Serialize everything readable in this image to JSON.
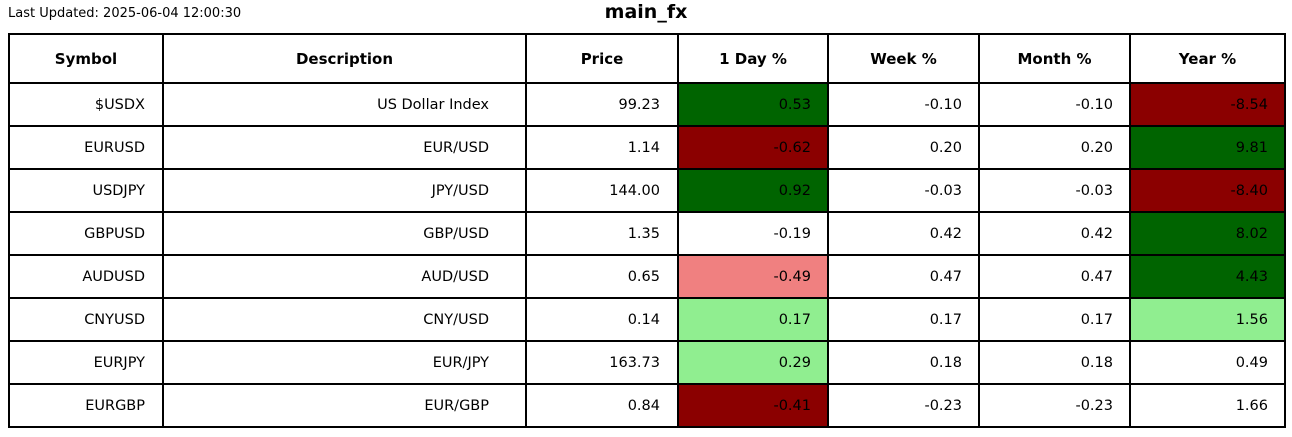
{
  "last_updated": "Last Updated: 2025-06-04 12:00:30",
  "title": "main_fx",
  "colors": {
    "strong_up": "#006400",
    "mild_up": "#90ee90",
    "strong_down": "#8b0000",
    "mild_down": "#f08080",
    "neutral": "#ffffff",
    "border": "#000000",
    "text": "#000000"
  },
  "chart_data": {
    "type": "table",
    "title": "main_fx",
    "columns": [
      "Symbol",
      "Description",
      "Price",
      "1 Day %",
      "Week %",
      "Month %",
      "Year %"
    ],
    "rows": [
      {
        "symbol": "$USDX",
        "description": "US Dollar Index",
        "price": "99.23",
        "pcts": [
          {
            "v": "0.53",
            "bg": "strong_up"
          },
          {
            "v": "-0.10",
            "bg": "neutral"
          },
          {
            "v": "-0.10",
            "bg": "neutral"
          },
          {
            "v": "-8.54",
            "bg": "strong_down"
          }
        ]
      },
      {
        "symbol": "EURUSD",
        "description": "EUR/USD",
        "price": "1.14",
        "pcts": [
          {
            "v": "-0.62",
            "bg": "strong_down"
          },
          {
            "v": "0.20",
            "bg": "neutral"
          },
          {
            "v": "0.20",
            "bg": "neutral"
          },
          {
            "v": "9.81",
            "bg": "strong_up"
          }
        ]
      },
      {
        "symbol": "USDJPY",
        "description": "JPY/USD",
        "price": "144.00",
        "pcts": [
          {
            "v": "0.92",
            "bg": "strong_up"
          },
          {
            "v": "-0.03",
            "bg": "neutral"
          },
          {
            "v": "-0.03",
            "bg": "neutral"
          },
          {
            "v": "-8.40",
            "bg": "strong_down"
          }
        ]
      },
      {
        "symbol": "GBPUSD",
        "description": "GBP/USD",
        "price": "1.35",
        "pcts": [
          {
            "v": "-0.19",
            "bg": "neutral"
          },
          {
            "v": "0.42",
            "bg": "neutral"
          },
          {
            "v": "0.42",
            "bg": "neutral"
          },
          {
            "v": "8.02",
            "bg": "strong_up"
          }
        ]
      },
      {
        "symbol": "AUDUSD",
        "description": "AUD/USD",
        "price": "0.65",
        "pcts": [
          {
            "v": "-0.49",
            "bg": "mild_down"
          },
          {
            "v": "0.47",
            "bg": "neutral"
          },
          {
            "v": "0.47",
            "bg": "neutral"
          },
          {
            "v": "4.43",
            "bg": "strong_up"
          }
        ]
      },
      {
        "symbol": "CNYUSD",
        "description": "CNY/USD",
        "price": "0.14",
        "pcts": [
          {
            "v": "0.17",
            "bg": "mild_up"
          },
          {
            "v": "0.17",
            "bg": "neutral"
          },
          {
            "v": "0.17",
            "bg": "neutral"
          },
          {
            "v": "1.56",
            "bg": "mild_up"
          }
        ]
      },
      {
        "symbol": "EURJPY",
        "description": "EUR/JPY",
        "price": "163.73",
        "pcts": [
          {
            "v": "0.29",
            "bg": "mild_up"
          },
          {
            "v": "0.18",
            "bg": "neutral"
          },
          {
            "v": "0.18",
            "bg": "neutral"
          },
          {
            "v": "0.49",
            "bg": "neutral"
          }
        ]
      },
      {
        "symbol": "EURGBP",
        "description": "EUR/GBP",
        "price": "0.84",
        "pcts": [
          {
            "v": "-0.41",
            "bg": "strong_down"
          },
          {
            "v": "-0.23",
            "bg": "neutral"
          },
          {
            "v": "-0.23",
            "bg": "neutral"
          },
          {
            "v": "1.66",
            "bg": "neutral"
          }
        ]
      }
    ]
  }
}
